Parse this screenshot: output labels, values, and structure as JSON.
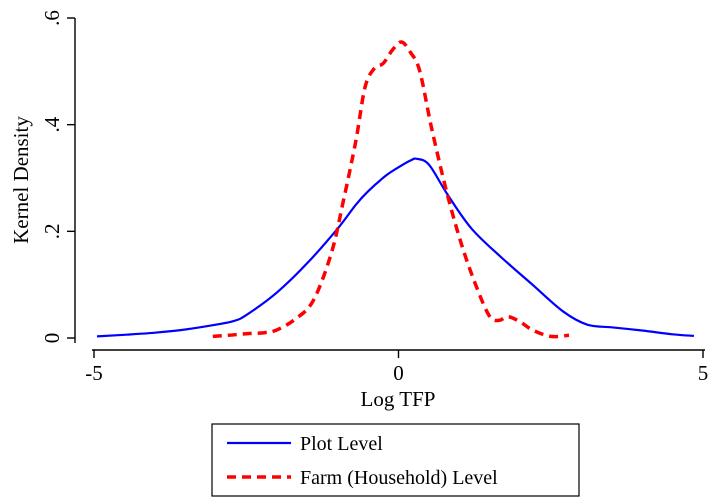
{
  "chart_data": {
    "type": "line",
    "title": "",
    "xlabel": "Log TFP",
    "ylabel": "Kernel Density",
    "xlim": [
      -5,
      5
    ],
    "ylim": [
      0,
      0.6
    ],
    "xticks": [
      -5,
      0,
      5
    ],
    "xtick_labels": [
      "-5",
      "0",
      "5"
    ],
    "yticks": [
      0,
      0.2,
      0.4,
      0.6
    ],
    "ytick_labels": [
      "0",
      ".2",
      ".4",
      ".6"
    ],
    "grid": false,
    "legend_position": "bottom",
    "series": [
      {
        "name": "Plot Level",
        "color": "#0000ff",
        "style": "solid",
        "x": [
          -4.95,
          -4.5,
          -4.0,
          -3.5,
          -3.0,
          -2.7,
          -2.5,
          -2.0,
          -1.5,
          -1.0,
          -0.7,
          -0.5,
          -0.2,
          0.0,
          0.2,
          0.3,
          0.5,
          0.8,
          1.2,
          1.7,
          2.2,
          2.7,
          3.1,
          3.5,
          4.0,
          4.5,
          4.85
        ],
        "y": [
          0.003,
          0.006,
          0.01,
          0.016,
          0.025,
          0.032,
          0.043,
          0.085,
          0.14,
          0.205,
          0.25,
          0.275,
          0.305,
          0.32,
          0.333,
          0.336,
          0.325,
          0.27,
          0.205,
          0.15,
          0.1,
          0.05,
          0.025,
          0.02,
          0.014,
          0.007,
          0.004
        ]
      },
      {
        "name": "Farm (Household) Level",
        "color": "#ff0000",
        "style": "dashed",
        "x": [
          -3.05,
          -2.8,
          -2.5,
          -2.2,
          -2.0,
          -1.7,
          -1.4,
          -1.1,
          -0.9,
          -0.7,
          -0.55,
          -0.4,
          -0.25,
          -0.1,
          0.05,
          0.2,
          0.35,
          0.55,
          0.8,
          1.05,
          1.3,
          1.5,
          1.65,
          1.8,
          2.0,
          2.2,
          2.5,
          2.8
        ],
        "y": [
          0.003,
          0.005,
          0.008,
          0.01,
          0.015,
          0.035,
          0.07,
          0.16,
          0.26,
          0.37,
          0.47,
          0.505,
          0.515,
          0.54,
          0.555,
          0.535,
          0.5,
          0.39,
          0.27,
          0.17,
          0.09,
          0.04,
          0.033,
          0.04,
          0.03,
          0.015,
          0.003,
          0.005
        ]
      }
    ]
  }
}
